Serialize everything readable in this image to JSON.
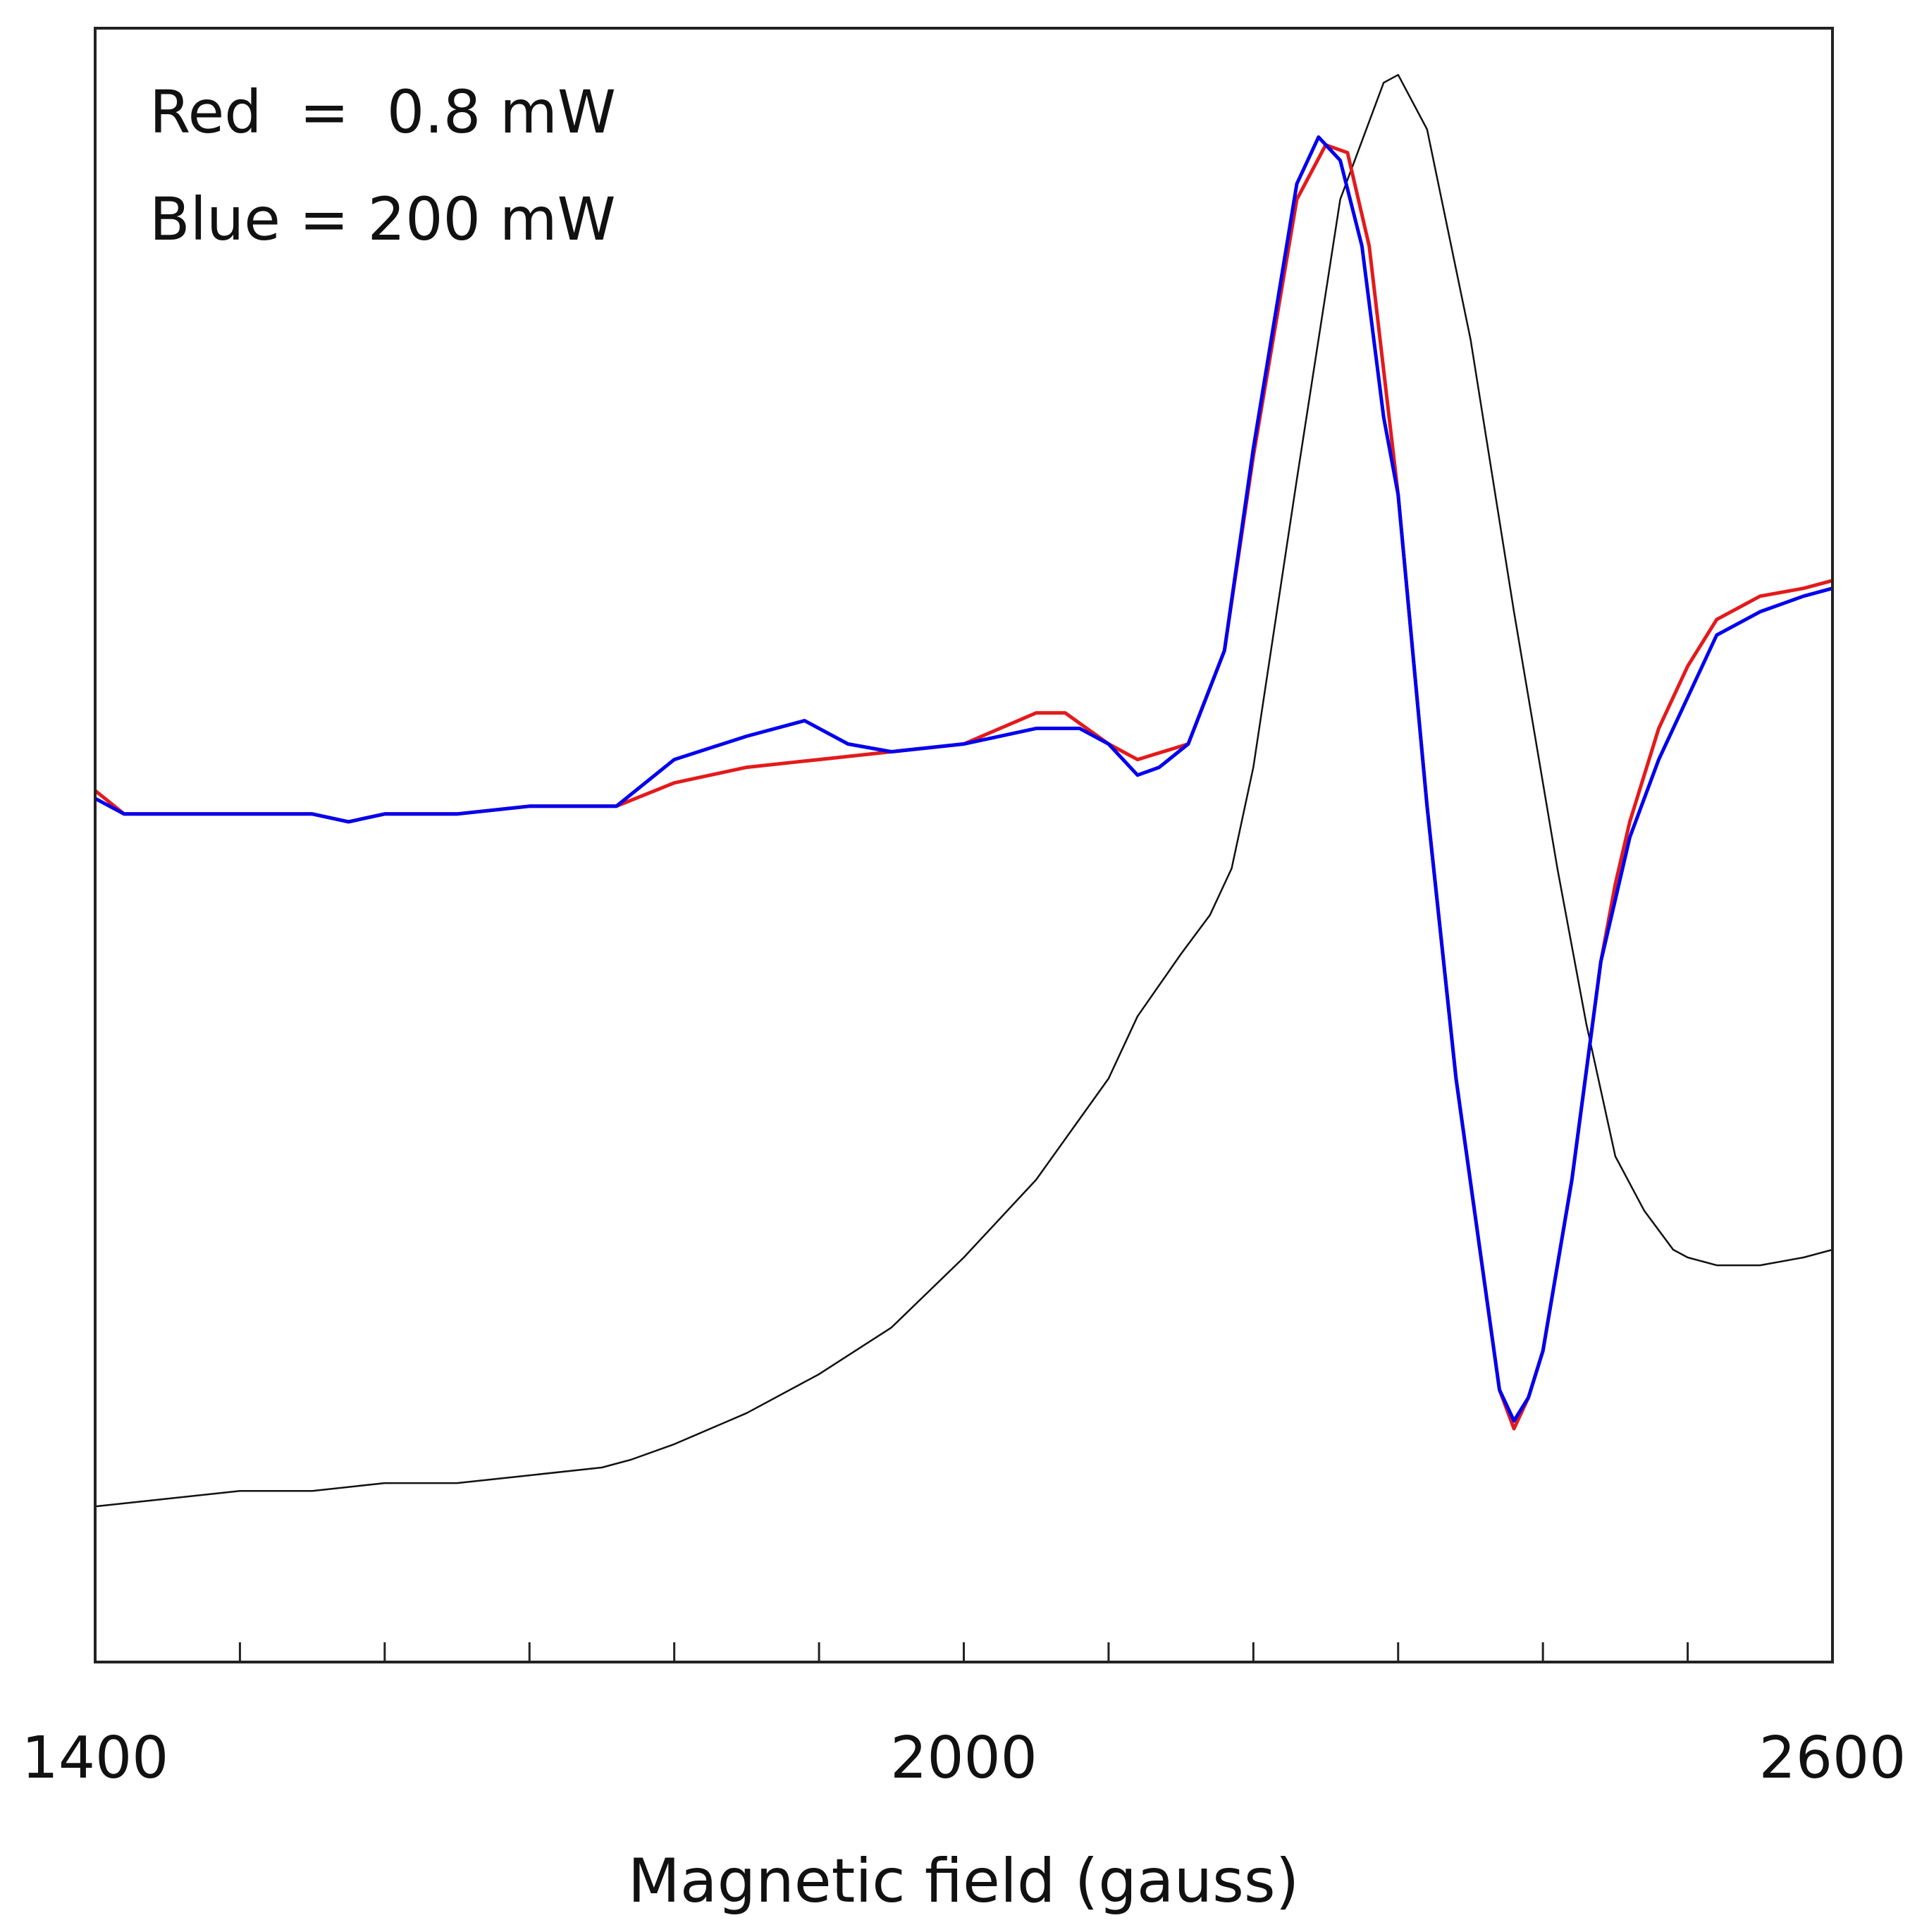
{
  "chart_data": {
    "type": "line",
    "title": "",
    "xlabel": "Magnetic field (gauss)",
    "ylabel": "",
    "xlim": [
      1400,
      2600
    ],
    "ylim": [
      -1.1,
      1.0
    ],
    "x_ticks": [
      1400,
      2000,
      2600
    ],
    "x_minor_step": 100,
    "legend": {
      "position": "top-left",
      "lines": [
        "Red  =  0.8 mW",
        "Blue = 200 mW"
      ]
    },
    "series": [
      {
        "name": "0.8 mW",
        "color": "#e31a1c",
        "x": [
          1400,
          1420,
          1450,
          1500,
          1550,
          1575,
          1600,
          1650,
          1700,
          1750,
          1760,
          1800,
          1850,
          1900,
          1950,
          2000,
          2050,
          2070,
          2100,
          2120,
          2155,
          2180,
          2200,
          2230,
          2250,
          2265,
          2280,
          2300,
          2320,
          2340,
          2370,
          2380,
          2390,
          2400,
          2420,
          2440,
          2450,
          2460,
          2480,
          2500,
          2520,
          2550,
          2580,
          2600
        ],
        "values": [
          0.02,
          -0.01,
          -0.01,
          -0.01,
          -0.01,
          -0.02,
          -0.01,
          -0.01,
          0.0,
          0.0,
          0.0,
          0.03,
          0.05,
          0.06,
          0.07,
          0.08,
          0.12,
          0.12,
          0.08,
          0.06,
          0.08,
          0.2,
          0.45,
          0.78,
          0.85,
          0.84,
          0.72,
          0.4,
          0.0,
          -0.35,
          -0.75,
          -0.8,
          -0.76,
          -0.7,
          -0.48,
          -0.2,
          -0.1,
          -0.02,
          0.1,
          0.18,
          0.24,
          0.27,
          0.28,
          0.29
        ]
      },
      {
        "name": "200 mW",
        "color": "#0000ee",
        "x": [
          1400,
          1420,
          1450,
          1500,
          1550,
          1575,
          1600,
          1650,
          1700,
          1750,
          1760,
          1800,
          1850,
          1890,
          1920,
          1950,
          2000,
          2050,
          2080,
          2100,
          2120,
          2135,
          2155,
          2180,
          2200,
          2230,
          2245,
          2260,
          2275,
          2290,
          2300,
          2320,
          2340,
          2370,
          2380,
          2390,
          2400,
          2420,
          2440,
          2450,
          2460,
          2480,
          2500,
          2520,
          2550,
          2580,
          2600
        ],
        "values": [
          0.01,
          -0.01,
          -0.01,
          -0.01,
          -0.01,
          -0.02,
          -0.01,
          -0.01,
          0.0,
          0.0,
          0.0,
          0.06,
          0.09,
          0.11,
          0.08,
          0.07,
          0.08,
          0.1,
          0.1,
          0.08,
          0.04,
          0.05,
          0.08,
          0.2,
          0.46,
          0.8,
          0.86,
          0.83,
          0.72,
          0.5,
          0.4,
          0.0,
          -0.35,
          -0.75,
          -0.79,
          -0.76,
          -0.7,
          -0.48,
          -0.2,
          -0.12,
          -0.04,
          0.06,
          0.14,
          0.22,
          0.25,
          0.27,
          0.28
        ]
      },
      {
        "name": "black",
        "color": "#111111",
        "x": [
          1400,
          1450,
          1500,
          1550,
          1600,
          1650,
          1700,
          1750,
          1770,
          1800,
          1850,
          1900,
          1950,
          2000,
          2050,
          2100,
          2120,
          2150,
          2170,
          2185,
          2200,
          2230,
          2260,
          2290,
          2300,
          2320,
          2350,
          2380,
          2410,
          2430,
          2450,
          2470,
          2490,
          2500,
          2520,
          2550,
          2580,
          2600
        ],
        "values": [
          -0.9,
          -0.89,
          -0.88,
          -0.88,
          -0.87,
          -0.87,
          -0.86,
          -0.85,
          -0.84,
          -0.82,
          -0.78,
          -0.73,
          -0.67,
          -0.58,
          -0.48,
          -0.35,
          -0.27,
          -0.19,
          -0.14,
          -0.08,
          0.05,
          0.42,
          0.78,
          0.93,
          0.94,
          0.87,
          0.6,
          0.25,
          -0.08,
          -0.28,
          -0.45,
          -0.52,
          -0.57,
          -0.58,
          -0.59,
          -0.59,
          -0.58,
          -0.57
        ]
      }
    ]
  }
}
